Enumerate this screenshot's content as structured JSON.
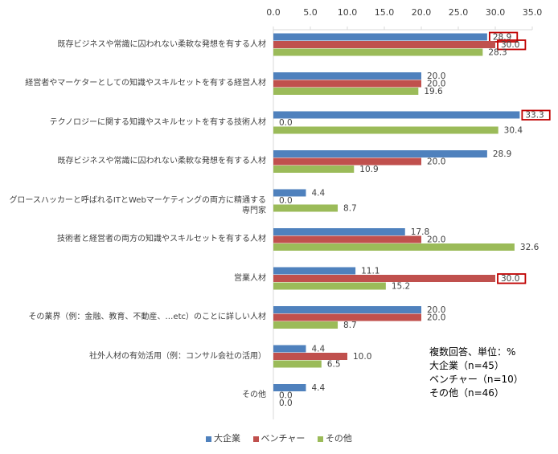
{
  "chart_data": {
    "type": "bar",
    "orientation": "horizontal",
    "categories": [
      "既存ビジネスや常識に囚われない柔軟な発想を有する人材",
      "経営者やマーケターとしての知識やスキルセットを有する経営人材",
      "テクノロジーに関する知識やスキルセットを有する技術人材",
      "既存ビジネスや常識に囚われない柔軟な発想を有する人材",
      "グロースハッカーと呼ばれるITとWebマーケティングの両方に精通する専門家",
      "技術者と経営者の両方の知識やスキルセットを有する人材",
      "営業人材",
      "その業界（例：金融、教育、不動産、…etc）のことに詳しい人材",
      "社外人材の有効活用（例：コンサル会社の活用）",
      "その他"
    ],
    "series": [
      {
        "name": "大企業",
        "color": "#4f81bd",
        "values": [
          28.9,
          20.0,
          33.3,
          28.9,
          4.4,
          17.8,
          11.1,
          20.0,
          4.4,
          4.4
        ],
        "labels": [
          "28.9",
          "20.0",
          "33.3",
          "28.9",
          "4.4",
          "17.8",
          "11.1",
          "20.0",
          "4.4",
          "4.4"
        ]
      },
      {
        "name": "ベンチャー",
        "color": "#c0504d",
        "values": [
          30.0,
          20.0,
          0.0,
          20.0,
          0.0,
          20.0,
          30.0,
          20.0,
          10.0,
          0.0
        ],
        "labels": [
          "30.0",
          "20.0",
          "0.0",
          "20.0",
          "0.0",
          "20.0",
          "30.0",
          "20.0",
          "10.0",
          "0.0"
        ]
      },
      {
        "name": "その他",
        "color": "#9bbb59",
        "values": [
          28.3,
          19.6,
          30.4,
          10.9,
          8.7,
          32.6,
          15.2,
          8.7,
          6.5,
          0.0
        ],
        "labels": [
          "28.3",
          "19.6",
          "30.4",
          "10.9",
          "8.7",
          "32.6",
          "15.2",
          "8.7",
          "6.5",
          "0.0"
        ]
      }
    ],
    "xlim": [
      0,
      35
    ],
    "xticks": [
      "0.0",
      "5.0",
      "10.0",
      "15.0",
      "20.0",
      "25.0",
      "30.0",
      "35.0"
    ],
    "axis_position": "top",
    "grid": false,
    "legend_position": "bottom",
    "highlight_color": "#c00000",
    "highlights": [
      {
        "category_index": 0,
        "series_index": 0
      },
      {
        "category_index": 0,
        "series_index": 1
      },
      {
        "category_index": 2,
        "series_index": 0
      },
      {
        "category_index": 6,
        "series_index": 1
      }
    ],
    "note_lines": [
      "複数回答、単位：%",
      "大企業（n=45）",
      "ベンチャー（n=10）",
      "その他（n=46）"
    ]
  }
}
